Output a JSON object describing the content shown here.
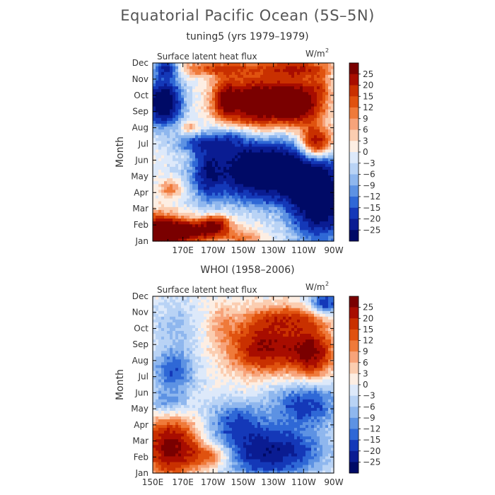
{
  "title": "Equatorial Pacific Ocean (5S–5N)",
  "chart_data": [
    {
      "type": "heatmap",
      "subtitle": "tuning5 (yrs 1979–1979)",
      "field_label": "Surface latent heat flux",
      "units_base": "W/m",
      "units_exp": "2",
      "ylabel": "Month",
      "x_ticks": [
        "170E",
        "170W",
        "150W",
        "130W",
        "110W",
        "90W"
      ],
      "y_ticks": [
        "Jan",
        "Feb",
        "Mar",
        "Apr",
        "May",
        "Jun",
        "Jul",
        "Aug",
        "Sep",
        "Oct",
        "Nov",
        "Dec"
      ],
      "xlim": [
        150,
        270
      ],
      "ylim": [
        1,
        12
      ],
      "pattern": "positive anomalies along western edge Jan–Feb, negative in west Sep–Nov; strong negative band over central/east Feb–Jun; positive over central/east Jul–Dec"
    },
    {
      "type": "heatmap",
      "subtitle": "WHOI (1958–2006)",
      "field_label": "Surface latent heat flux",
      "units_base": "W/m",
      "units_exp": "2",
      "ylabel": "Month",
      "x_ticks": [
        "150E",
        "170E",
        "170W",
        "150W",
        "130W",
        "110W",
        "90W"
      ],
      "y_ticks": [
        "Jan",
        "Feb",
        "Mar",
        "Apr",
        "May",
        "Jun",
        "Jul",
        "Aug",
        "Sep",
        "Oct",
        "Nov",
        "Dec"
      ],
      "xlim": [
        150,
        270
      ],
      "ylim": [
        1,
        12
      ],
      "pattern": "positive in west Jan–Mar; negative in west Apr–Dec; negative over central/east Jan–Jun; positive over central/east Jul–Nov"
    }
  ],
  "colorbar": {
    "labels": [
      "25",
      "20",
      "15",
      "12",
      "9",
      "6",
      "3",
      "0",
      "−3",
      "−6",
      "−9",
      "−12",
      "−15",
      "−20",
      "−25"
    ],
    "colors": [
      "#7a0000",
      "#a80d00",
      "#c93000",
      "#e0520f",
      "#ef7a3a",
      "#f7a37a",
      "#fbcdb0",
      "#fdeee3",
      "#dde9fa",
      "#b9d3f5",
      "#8fb7ee",
      "#5d92e3",
      "#2f68d6",
      "#1438b8",
      "#0a1c92",
      "#000a66"
    ]
  }
}
